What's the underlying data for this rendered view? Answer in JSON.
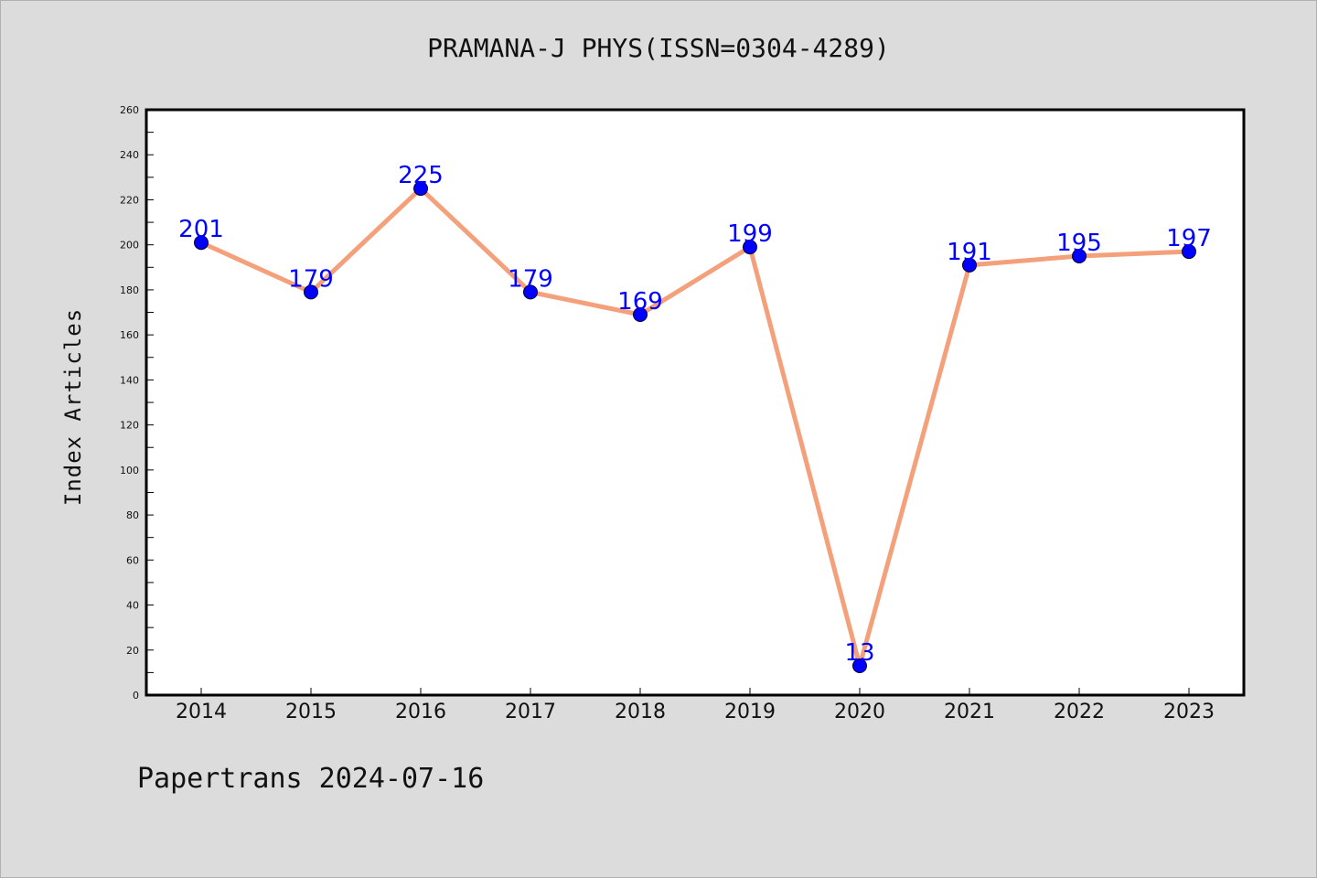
{
  "page": {
    "footer": "Papertrans 2024-07-16"
  },
  "colors": {
    "background": "#dcdcdc",
    "plot_background": "#ffffff",
    "line": "#f4a07a",
    "marker": "#0000ff",
    "data_label": "#0000ff"
  },
  "chart_data": {
    "type": "line",
    "title": "PRAMANA-J PHYS(ISSN=0304-4289)",
    "xlabel": "",
    "ylabel": "Index Articles",
    "categories": [
      "2014",
      "2015",
      "2016",
      "2017",
      "2018",
      "2019",
      "2020",
      "2021",
      "2022",
      "2023"
    ],
    "series": [
      {
        "values": [
          201,
          179,
          225,
          179,
          169,
          199,
          13,
          191,
          195,
          197
        ]
      }
    ],
    "ylim": [
      0,
      260
    ],
    "yticks": [
      0,
      20,
      40,
      60,
      80,
      100,
      120,
      140,
      160,
      180,
      200,
      220,
      240,
      260
    ],
    "grid": false,
    "legend": "none",
    "data_labels": true
  }
}
